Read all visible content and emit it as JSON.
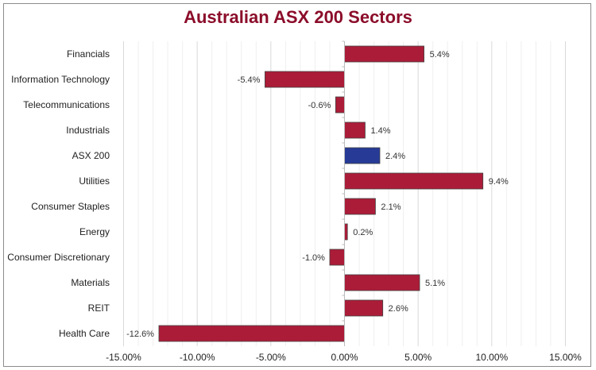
{
  "chart_data": {
    "type": "bar",
    "orientation": "horizontal",
    "title": "Australian ASX 200 Sectors",
    "categories": [
      "Financials",
      "Information Technology",
      "Telecommunications",
      "Industrials",
      "ASX 200",
      "Utilities",
      "Consumer Staples",
      "Energy",
      "Consumer Discretionary",
      "Materials",
      "REIT",
      "Health Care"
    ],
    "values": [
      5.4,
      -5.4,
      -0.6,
      1.4,
      2.4,
      9.4,
      2.1,
      0.2,
      -1.0,
      5.1,
      2.6,
      -12.6
    ],
    "data_labels": [
      "5.4%",
      "-5.4%",
      "-0.6%",
      "1.4%",
      "2.4%",
      "9.4%",
      "2.1%",
      "0.2%",
      "-1.0%",
      "5.1%",
      "2.6%",
      "-12.6%"
    ],
    "highlight_category": "ASX 200",
    "xlim": [
      -15,
      15
    ],
    "xticks": [
      -15,
      -10,
      -5,
      0,
      5,
      10,
      15
    ],
    "xtick_labels": [
      "-15.00%",
      "-10.00%",
      "-5.00%",
      "0.00%",
      "5.00%",
      "10.00%",
      "15.00%"
    ],
    "grid": true,
    "colors": {
      "bar": "#ab1c38",
      "highlight": "#263a96",
      "title": "#8b0d2a",
      "grid_major": "#d9d9d9",
      "grid_minor": "#efefef"
    }
  }
}
